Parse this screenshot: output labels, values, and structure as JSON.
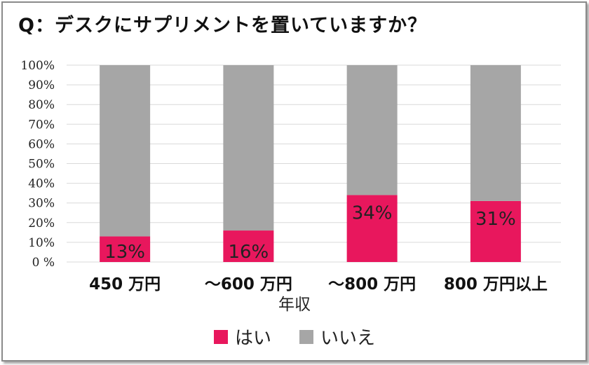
{
  "title": "Q：デスクにサプリメントを置いていますか？",
  "chart_data": {
    "type": "bar",
    "stacked": true,
    "percent_stacked": true,
    "categories": [
      "450 万円",
      "～600 万円",
      "～800 万円",
      "800 万円以上"
    ],
    "series": [
      {
        "name": "はい",
        "values": [
          13,
          16,
          34,
          31
        ],
        "color": "#e8175d"
      },
      {
        "name": "いいえ",
        "values": [
          87,
          84,
          66,
          69
        ],
        "color": "#a6a6a6"
      }
    ],
    "data_labels": [
      "13%",
      "16%",
      "34%",
      "31%"
    ],
    "ylim": [
      0,
      100
    ],
    "yticks": [
      "0 %",
      "10%",
      "20%",
      "30%",
      "40%",
      "50%",
      "60%",
      "70%",
      "80%",
      "90%",
      "100%"
    ],
    "xlabel": "年収",
    "ylabel": "",
    "grid": true,
    "legend_position": "bottom"
  }
}
